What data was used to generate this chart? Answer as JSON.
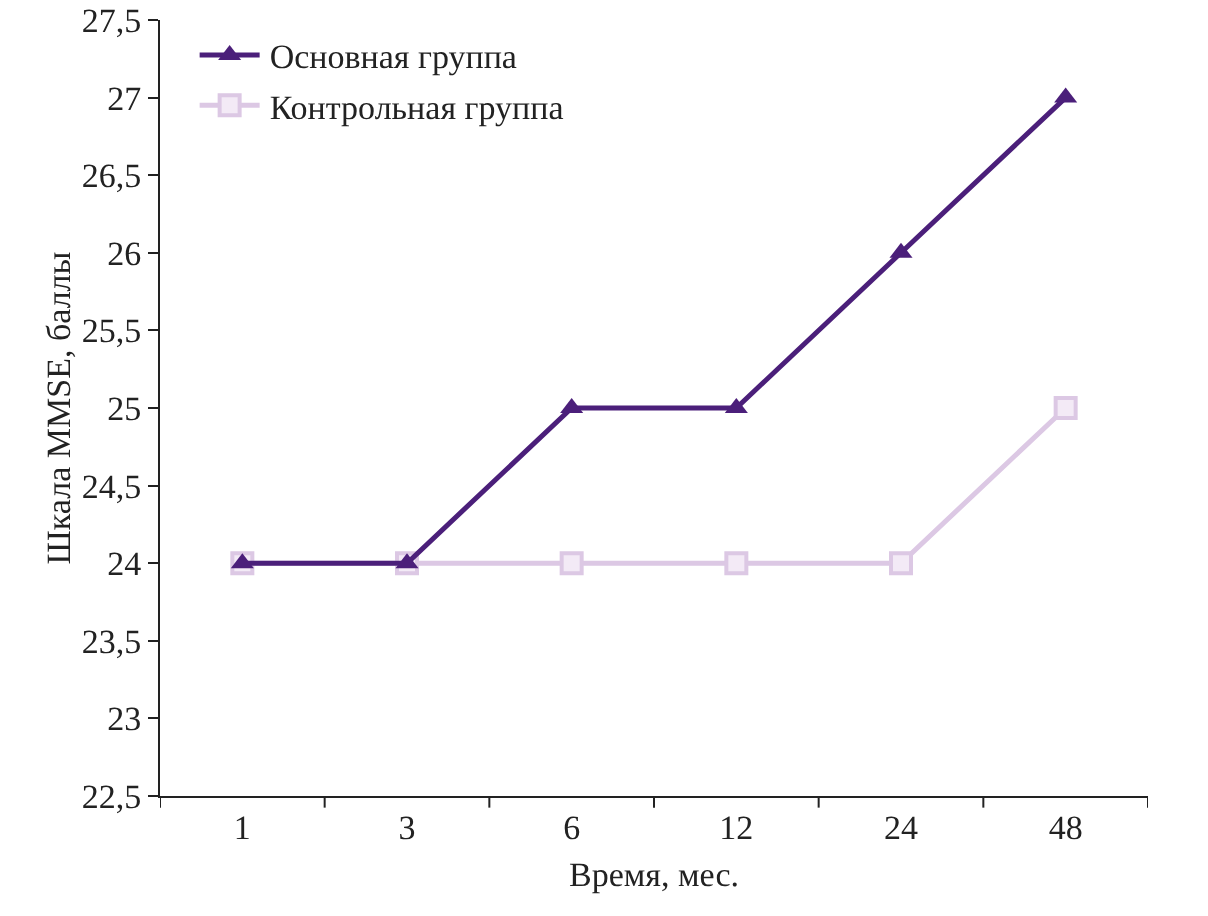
{
  "chart_data": {
    "type": "line",
    "xlabel": "Время, мес.",
    "ylabel": "Шкала MMSE, баллы",
    "categories": [
      "1",
      "3",
      "6",
      "12",
      "24",
      "48"
    ],
    "series": [
      {
        "name": "Основная группа",
        "color": "#4b1f7a",
        "marker": "triangle",
        "values": [
          24,
          24,
          25,
          25,
          26,
          27
        ]
      },
      {
        "name": "Контрольная группа",
        "color": "#dcc8e4",
        "marker": "square",
        "values": [
          24,
          24,
          24,
          24,
          24,
          25
        ]
      }
    ],
    "ylim": [
      22.5,
      27.5
    ],
    "yticks": [
      {
        "value": 22.5,
        "label": "22,5"
      },
      23,
      {
        "value": 23.5,
        "label": "23,5"
      },
      24,
      {
        "value": 24.5,
        "label": "24,5"
      },
      25,
      {
        "value": 25.5,
        "label": "25,5"
      },
      26,
      {
        "value": 26.5,
        "label": "26,5"
      },
      27,
      {
        "value": 27.5,
        "label": "27,5"
      }
    ],
    "grid": false,
    "legend": "top left",
    "line_style": "solid"
  }
}
